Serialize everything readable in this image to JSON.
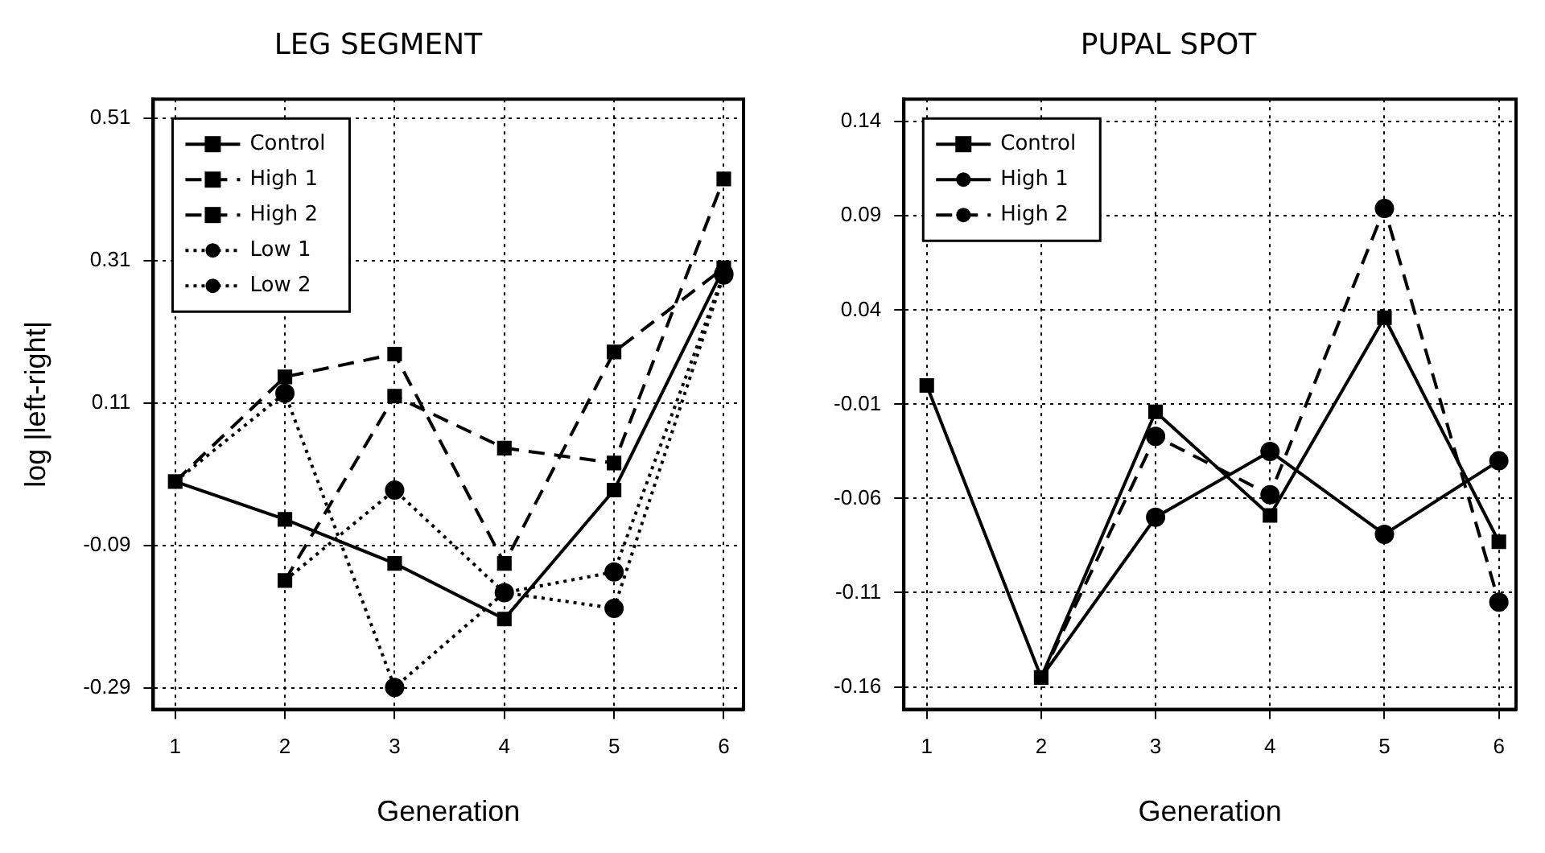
{
  "chart_data": [
    {
      "type": "line",
      "title": "LEG SEGMENT",
      "xlabel": "Generation",
      "ylabel": "log |left-right|",
      "x": [
        1,
        2,
        3,
        4,
        5,
        6
      ],
      "xlim": [
        0.8,
        6.18
      ],
      "xticks": [
        1,
        2,
        3,
        4,
        5,
        6
      ],
      "ylim": [
        -0.32,
        0.537
      ],
      "yticks": [
        -0.29,
        -0.09,
        0.11,
        0.31,
        0.51
      ],
      "grid": true,
      "legend": "top left",
      "series": [
        {
          "name": "Control",
          "color": "#000000",
          "line_style": "solid",
          "marker": "square",
          "values": [
            0.0,
            -0.053,
            -0.115,
            -0.193,
            -0.012,
            0.3
          ]
        },
        {
          "name": "High 1",
          "color": "#000000",
          "line_style": "dashed",
          "marker": "square",
          "values": [
            0.0,
            0.147,
            0.179,
            -0.115,
            0.182,
            0.3
          ]
        },
        {
          "name": "High 2",
          "color": "#000000",
          "line_style": "dashed",
          "marker": "square",
          "values": [
            null,
            -0.139,
            0.12,
            0.047,
            0.026,
            0.425
          ]
        },
        {
          "name": "Low 1",
          "color": "#000000",
          "line_style": "dotted",
          "marker": "circle",
          "values": [
            0.0,
            0.124,
            -0.289,
            -0.156,
            -0.127,
            0.292
          ]
        },
        {
          "name": "Low 2",
          "color": "#000000",
          "line_style": "dotted",
          "marker": "circle",
          "values": [
            null,
            -0.139,
            -0.012,
            -0.156,
            -0.178,
            0.29
          ]
        }
      ]
    },
    {
      "type": "line",
      "title": "PUPAL SPOT",
      "xlabel": "Generation",
      "x": [
        1,
        2,
        3,
        4,
        5,
        6
      ],
      "xlim": [
        0.8,
        6.15
      ],
      "xticks": [
        1,
        2,
        3,
        4,
        5,
        6
      ],
      "ylim": [
        -0.172,
        0.152
      ],
      "yticks": [
        -0.16,
        -0.11,
        -0.06,
        -0.01,
        0.04,
        0.09,
        0.14
      ],
      "grid": true,
      "legend": "top left",
      "series": [
        {
          "name": "Control",
          "color": "#000000",
          "line_style": "solid",
          "marker": "square",
          "values": [
            0.0,
            -0.155,
            -0.014,
            -0.069,
            0.036,
            -0.083
          ]
        },
        {
          "name": "High 1",
          "color": "#000000",
          "line_style": "solid",
          "marker": "circle",
          "values": [
            null,
            -0.155,
            -0.07,
            -0.035,
            -0.079,
            -0.04
          ]
        },
        {
          "name": "High 2",
          "color": "#000000",
          "line_style": "dashed",
          "marker": "circle",
          "values": [
            null,
            -0.155,
            -0.027,
            -0.058,
            0.094,
            -0.115
          ]
        }
      ]
    }
  ]
}
